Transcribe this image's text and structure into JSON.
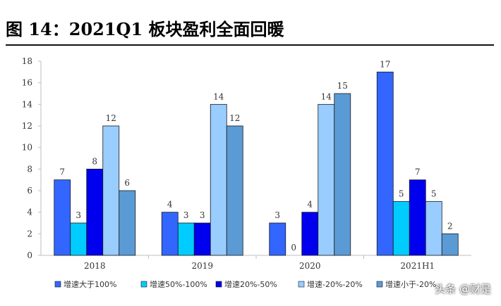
{
  "header": {
    "title": "图 14：2021Q1 板块盈利全面回暖"
  },
  "watermark": "头条 @财是",
  "chart_data": {
    "type": "bar",
    "categories": [
      "2018",
      "2019",
      "2020",
      "2021H1"
    ],
    "series": [
      {
        "name": "增速大于100%",
        "color": "#3366ff",
        "values": [
          7,
          4,
          3,
          17
        ]
      },
      {
        "name": "增速50%-100%",
        "color": "#00ccff",
        "values": [
          3,
          3,
          0,
          5
        ]
      },
      {
        "name": "增速20%-50%",
        "color": "#0000ee",
        "values": [
          8,
          3,
          4,
          7
        ]
      },
      {
        "name": "增速-20%-20%",
        "color": "#99ccff",
        "values": [
          12,
          14,
          14,
          5
        ]
      },
      {
        "name": "增速小于-20%",
        "color": "#5b9bd5",
        "values": [
          6,
          12,
          15,
          2
        ]
      }
    ],
    "ylim": [
      0,
      18
    ],
    "yticks": [
      0,
      2,
      4,
      6,
      8,
      10,
      12,
      14,
      16,
      18
    ],
    "grid": false,
    "legend": "bottom"
  }
}
